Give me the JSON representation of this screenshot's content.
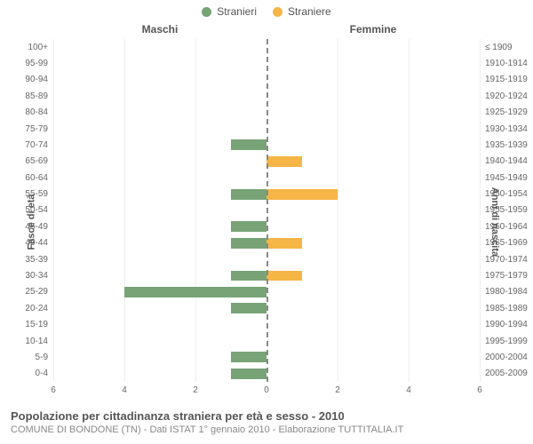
{
  "legend": {
    "male": {
      "label": "Stranieri",
      "color": "#77a377"
    },
    "female": {
      "label": "Straniere",
      "color": "#f5b547"
    }
  },
  "headers": {
    "left": "Maschi",
    "right": "Femmine"
  },
  "axes": {
    "left_title": "Fasce di età",
    "right_title": "Anni di nascita",
    "xmax": 6,
    "xticks": [
      0,
      2,
      4,
      6
    ],
    "grid_color": "#eeeeee",
    "center_line_color": "#888888"
  },
  "rows": [
    {
      "age": "100+",
      "birth": "≤ 1909",
      "m": 0,
      "f": 0
    },
    {
      "age": "95-99",
      "birth": "1910-1914",
      "m": 0,
      "f": 0
    },
    {
      "age": "90-94",
      "birth": "1915-1919",
      "m": 0,
      "f": 0
    },
    {
      "age": "85-89",
      "birth": "1920-1924",
      "m": 0,
      "f": 0
    },
    {
      "age": "80-84",
      "birth": "1925-1929",
      "m": 0,
      "f": 0
    },
    {
      "age": "75-79",
      "birth": "1930-1934",
      "m": 0,
      "f": 0
    },
    {
      "age": "70-74",
      "birth": "1935-1939",
      "m": 1,
      "f": 0
    },
    {
      "age": "65-69",
      "birth": "1940-1944",
      "m": 0,
      "f": 1
    },
    {
      "age": "60-64",
      "birth": "1945-1949",
      "m": 0,
      "f": 0
    },
    {
      "age": "55-59",
      "birth": "1950-1954",
      "m": 1,
      "f": 2
    },
    {
      "age": "50-54",
      "birth": "1955-1959",
      "m": 0,
      "f": 0
    },
    {
      "age": "45-49",
      "birth": "1960-1964",
      "m": 1,
      "f": 0
    },
    {
      "age": "40-44",
      "birth": "1965-1969",
      "m": 1,
      "f": 1
    },
    {
      "age": "35-39",
      "birth": "1970-1974",
      "m": 0,
      "f": 0
    },
    {
      "age": "30-34",
      "birth": "1975-1979",
      "m": 1,
      "f": 1
    },
    {
      "age": "25-29",
      "birth": "1980-1984",
      "m": 4,
      "f": 0
    },
    {
      "age": "20-24",
      "birth": "1985-1989",
      "m": 1,
      "f": 0
    },
    {
      "age": "15-19",
      "birth": "1990-1994",
      "m": 0,
      "f": 0
    },
    {
      "age": "10-14",
      "birth": "1995-1999",
      "m": 0,
      "f": 0
    },
    {
      "age": "5-9",
      "birth": "2000-2004",
      "m": 1,
      "f": 0
    },
    {
      "age": "0-4",
      "birth": "2005-2009",
      "m": 1,
      "f": 0
    }
  ],
  "footer": {
    "title": "Popolazione per cittadinanza straniera per età e sesso - 2010",
    "sub": "COMUNE DI BONDONE (TN) - Dati ISTAT 1° gennaio 2010 - Elaborazione TUTTITALIA.IT"
  },
  "style": {
    "background": "#ffffff",
    "text_color": "#555555",
    "label_color": "#666666"
  }
}
